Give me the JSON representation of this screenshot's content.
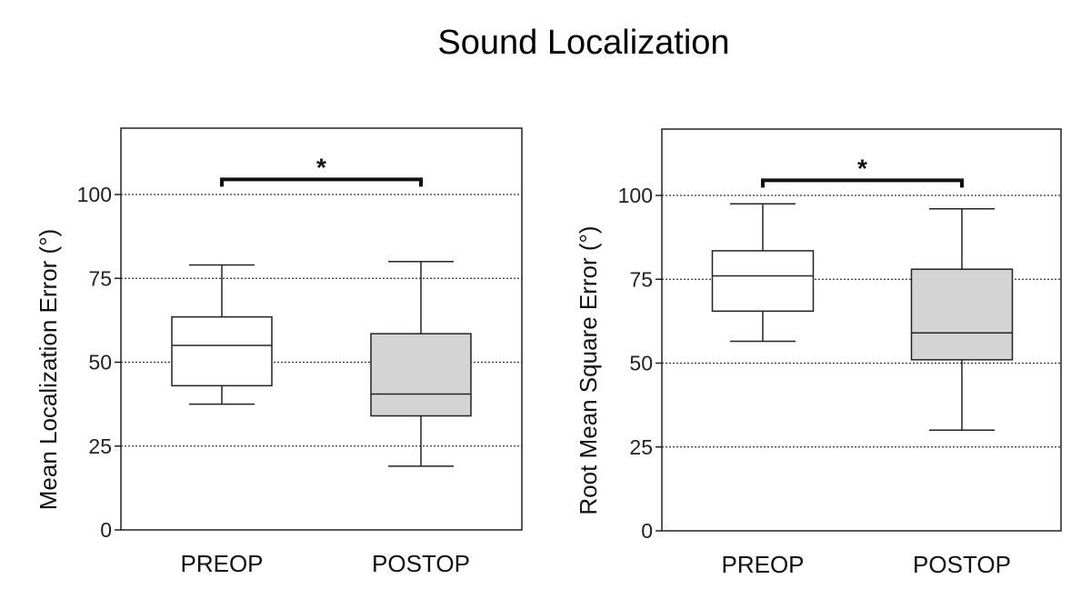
{
  "title": "Sound Localization",
  "colors": {
    "preop_fill": "#ffffff",
    "postop_fill": "#d4d4d4",
    "stroke": "#222222"
  },
  "chart_data": [
    {
      "type": "box",
      "ylabel": "Mean Localization Error (°)",
      "categories": [
        "PREOP",
        "POSTOP"
      ],
      "ylim": [
        0,
        120
      ],
      "yticks": [
        0,
        25,
        50,
        75,
        100
      ],
      "ytick_labels": [
        "0",
        "25",
        "50",
        "75",
        "100"
      ],
      "grid": "dotted horizontal at 25, 50, 75, 100",
      "series": [
        {
          "name": "PREOP",
          "min": 37.5,
          "q1": 43,
          "median": 55,
          "q3": 63.5,
          "max": 79
        },
        {
          "name": "POSTOP",
          "min": 19,
          "q1": 34,
          "median": 40.5,
          "q3": 58.5,
          "max": 80
        }
      ],
      "annotation": {
        "text": "*",
        "between": [
          "PREOP",
          "POSTOP"
        ]
      }
    },
    {
      "type": "box",
      "ylabel": "Root Mean Square Error  (°)",
      "categories": [
        "PREOP",
        "POSTOP"
      ],
      "ylim": [
        0,
        120
      ],
      "yticks": [
        0,
        25,
        50,
        75,
        100
      ],
      "ytick_labels": [
        "0",
        "25",
        "50",
        "75",
        "100"
      ],
      "grid": "dotted horizontal at 25, 50, 75, 100",
      "series": [
        {
          "name": "PREOP",
          "min": 56.5,
          "q1": 65.5,
          "median": 76,
          "q3": 83.5,
          "max": 97.5
        },
        {
          "name": "POSTOP",
          "min": 30,
          "q1": 51,
          "median": 59,
          "q3": 78,
          "max": 96
        }
      ],
      "annotation": {
        "text": "*",
        "between": [
          "PREOP",
          "POSTOP"
        ]
      }
    }
  ]
}
